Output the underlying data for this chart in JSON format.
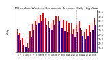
{
  "title": "Milwaukee Weather Barometric Pressure Daily High/Low",
  "days_labels": [
    "1",
    "2",
    "3",
    "4",
    "5",
    "6",
    "7",
    "8",
    "9",
    "10",
    "11",
    "12",
    "13",
    "14",
    "15",
    "16",
    "17",
    "18",
    "19",
    "20",
    "21",
    "22",
    "23",
    "24",
    "25",
    "26",
    "27",
    "28",
    "29",
    "30",
    "31"
  ],
  "highs": [
    29.8,
    29.65,
    29.45,
    29.38,
    29.2,
    29.75,
    30.05,
    30.2,
    30.38,
    30.45,
    30.52,
    30.28,
    30.18,
    30.08,
    30.22,
    30.38,
    30.42,
    30.32,
    30.22,
    30.18,
    30.12,
    30.08,
    29.85,
    30.02,
    30.18,
    29.78,
    29.68,
    29.82,
    30.02,
    30.12,
    30.28
  ],
  "lows": [
    29.55,
    29.35,
    29.15,
    29.05,
    28.98,
    29.48,
    29.78,
    29.98,
    30.12,
    30.18,
    30.22,
    29.98,
    29.88,
    29.78,
    29.98,
    30.1,
    30.18,
    29.88,
    29.72,
    29.68,
    29.62,
    29.58,
    29.48,
    29.68,
    29.88,
    29.52,
    29.38,
    29.52,
    29.68,
    29.78,
    29.98
  ],
  "high_color": "#ff0000",
  "low_color": "#0000cc",
  "background_color": "#ffffff",
  "ylim_min": 28.8,
  "ylim_max": 30.7,
  "vline_x": 22.5,
  "vline_color": "#aaaaaa",
  "ytick_labels": [
    "29.0",
    "29.2",
    "29.4",
    "29.6",
    "29.8",
    "30.0",
    "30.2",
    "30.4",
    "30.6"
  ],
  "ytick_vals": [
    29.0,
    29.2,
    29.4,
    29.6,
    29.8,
    30.0,
    30.2,
    30.4,
    30.6
  ],
  "ybaseline": 28.8,
  "bar_width": 0.42,
  "bar_gap": 0.0
}
